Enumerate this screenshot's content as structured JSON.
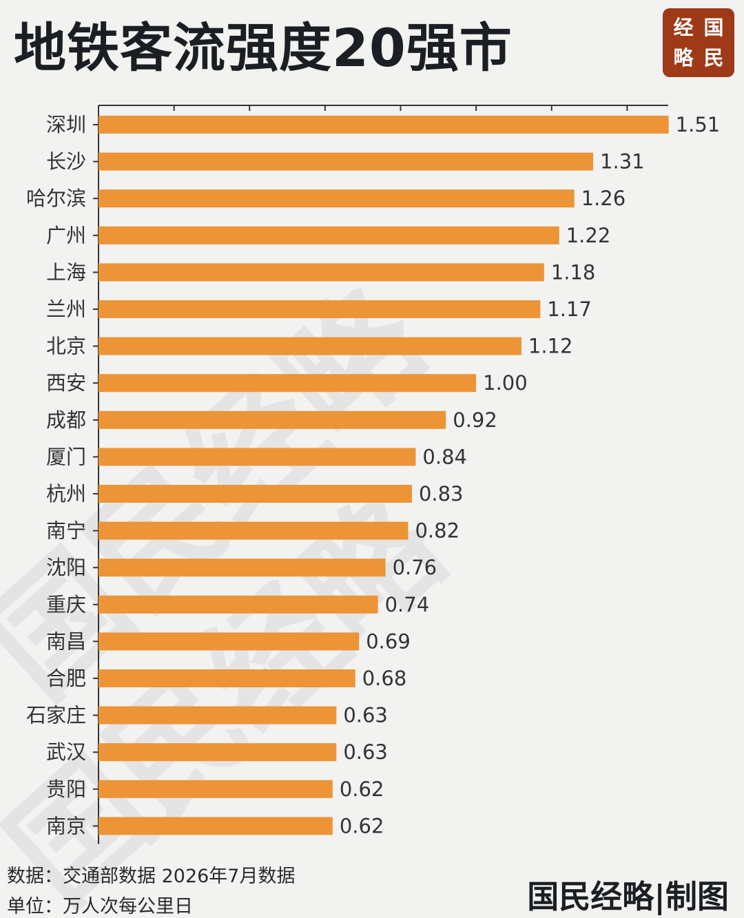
{
  "title": "地铁客流强度20强市",
  "logo": {
    "chars": [
      "经",
      "国",
      "略",
      "民"
    ]
  },
  "watermark": {
    "lines": [
      "国民经略",
      "国民经略"
    ]
  },
  "colors": {
    "bar": "#ec9436",
    "axis": "#333333",
    "logo_bg": "#9e3a18",
    "background": "#f2f2f1"
  },
  "chart_data": {
    "type": "bar",
    "orientation": "horizontal",
    "categories": [
      "深圳",
      "长沙",
      "哈尔滨",
      "广州",
      "上海",
      "兰州",
      "北京",
      "西安",
      "成都",
      "厦门",
      "杭州",
      "南宁",
      "沈阳",
      "重庆",
      "南昌",
      "合肥",
      "石家庄",
      "武汉",
      "贵阳",
      "南京"
    ],
    "values": [
      1.51,
      1.31,
      1.26,
      1.22,
      1.18,
      1.17,
      1.12,
      1.0,
      0.92,
      0.84,
      0.83,
      0.82,
      0.76,
      0.74,
      0.69,
      0.68,
      0.63,
      0.63,
      0.62,
      0.62
    ],
    "value_labels": [
      "1.51",
      "1.31",
      "1.26",
      "1.22",
      "1.18",
      "1.17",
      "1.12",
      "1.00",
      "0.92",
      "0.84",
      "0.83",
      "0.82",
      "0.76",
      "0.74",
      "0.69",
      "0.68",
      "0.63",
      "0.63",
      "0.62",
      "0.62"
    ],
    "xlim": [
      0,
      1.6
    ],
    "x_ticks": [
      0,
      0.2,
      0.4,
      0.6,
      0.8,
      1.0,
      1.2,
      1.4
    ],
    "x_axis_position": "top",
    "tick_labels_shown": false,
    "grid": false,
    "legend": "none"
  },
  "footer": {
    "source": "数据：交通部数据 2026年7月数据",
    "unit": "单位：万人次每公里日",
    "credit": "国民经略|制图"
  }
}
